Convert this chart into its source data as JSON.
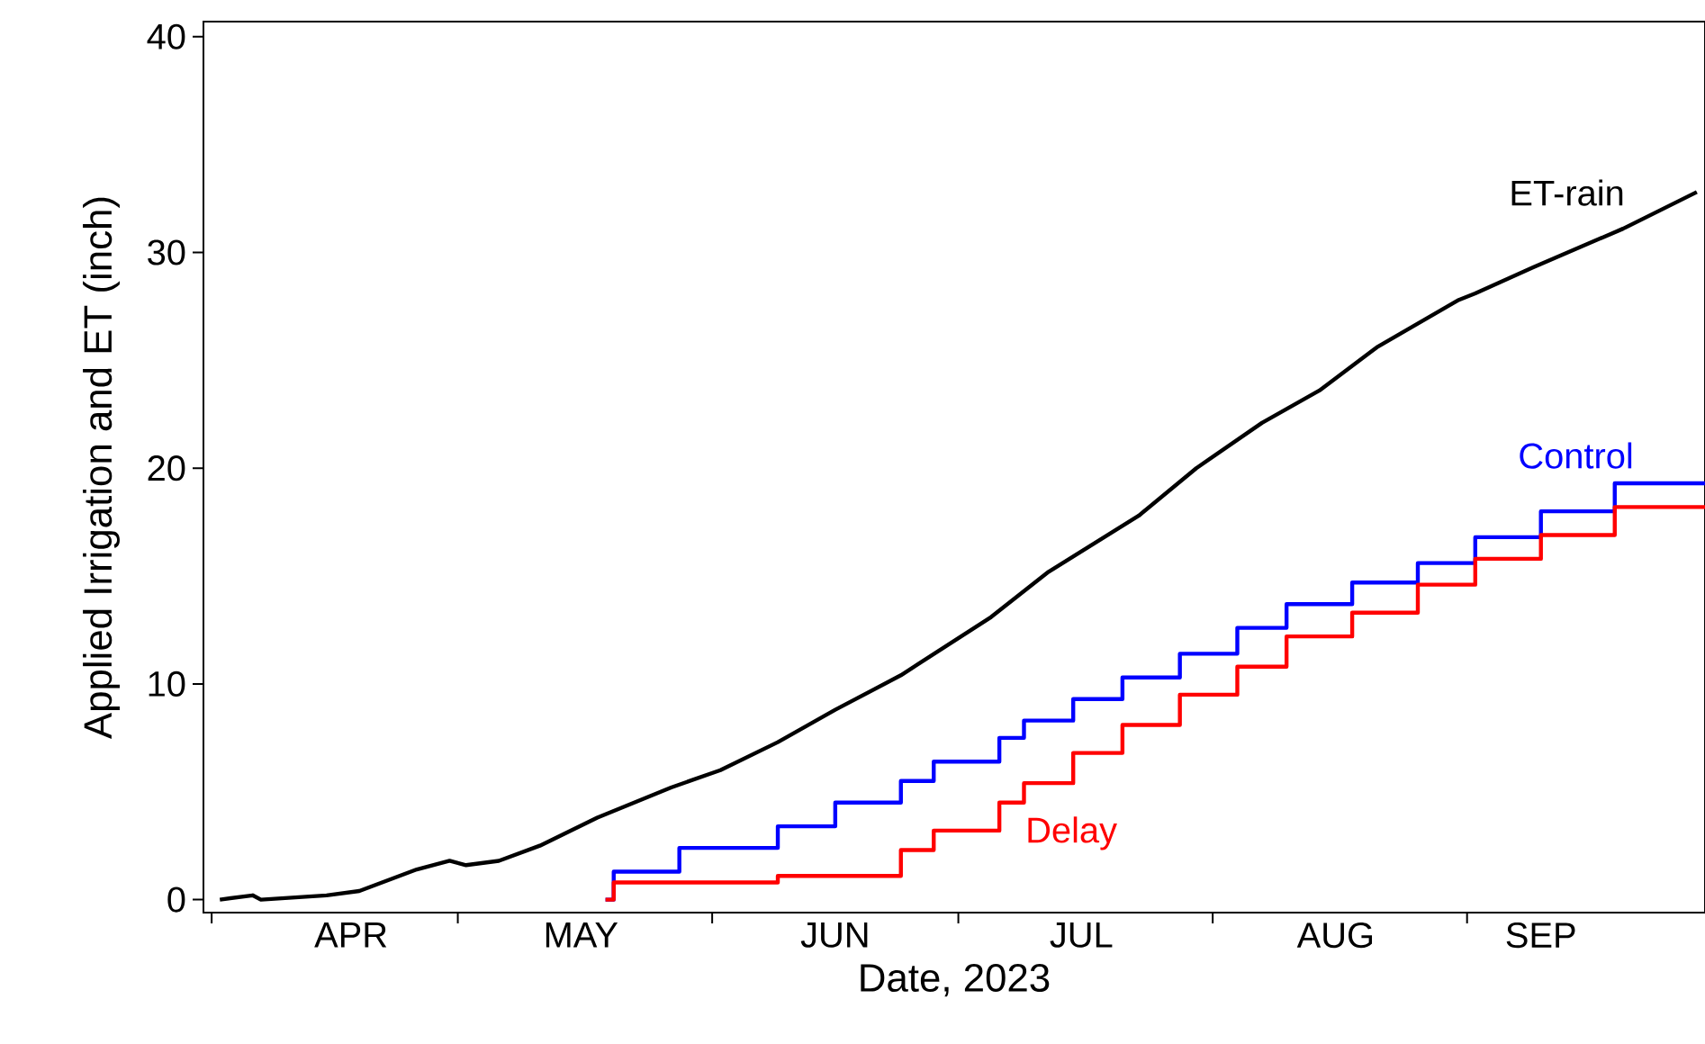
{
  "chart_data": {
    "type": "line",
    "xlabel": "Date, 2023",
    "ylabel": "Applied Irrigation and ET (inch)",
    "xlim": [
      "2023-03-31",
      "2023-09-30"
    ],
    "ylim": [
      -0.6,
      40.7
    ],
    "yticks": [
      0,
      10,
      20,
      30,
      40
    ],
    "xticks": [
      {
        "value": "2023-04-01",
        "label": null
      },
      {
        "value": "2023-05-01",
        "label": null
      },
      {
        "value": "2023-06-01",
        "label": null
      },
      {
        "value": "2023-07-01",
        "label": null
      },
      {
        "value": "2023-08-01",
        "label": null
      },
      {
        "value": "2023-09-01",
        "label": null
      },
      {
        "value": "2023-04-18",
        "label": "APR"
      },
      {
        "value": "2023-05-16",
        "label": "MAY"
      },
      {
        "value": "2023-06-16",
        "label": "JUN"
      },
      {
        "value": "2023-07-16",
        "label": "JUL"
      },
      {
        "value": "2023-08-16",
        "label": "AUG"
      },
      {
        "value": "2023-09-10",
        "label": "SEP"
      }
    ],
    "series": [
      {
        "name": "ET-rain",
        "color": "#000000",
        "type": "line",
        "x": [
          "2023-04-02",
          "2023-04-06",
          "2023-04-07",
          "2023-04-15",
          "2023-04-19",
          "2023-04-26",
          "2023-04-30",
          "2023-05-02",
          "2023-05-06",
          "2023-05-11",
          "2023-05-18",
          "2023-05-27",
          "2023-06-02",
          "2023-06-09",
          "2023-06-16",
          "2023-06-24",
          "2023-07-05",
          "2023-07-12",
          "2023-07-23",
          "2023-07-30",
          "2023-08-07",
          "2023-08-14",
          "2023-08-21",
          "2023-08-31",
          "2023-09-02",
          "2023-09-09",
          "2023-09-20",
          "2023-09-29"
        ],
        "values": [
          0,
          0.2,
          0,
          0.2,
          0.4,
          1.4,
          1.8,
          1.6,
          1.8,
          2.5,
          3.8,
          5.2,
          6.0,
          7.3,
          8.8,
          10.4,
          13.1,
          15.2,
          17.8,
          20,
          22.1,
          23.6,
          25.6,
          27.8,
          28.1,
          29.3,
          31.1,
          32.8
        ]
      },
      {
        "name": "Control",
        "color": "#0000ff",
        "type": "step",
        "x": [
          "2023-05-19",
          "2023-05-20",
          "2023-05-28",
          "2023-06-09",
          "2023-06-16",
          "2023-06-24",
          "2023-06-28",
          "2023-07-06",
          "2023-07-09",
          "2023-07-15",
          "2023-07-21",
          "2023-07-28",
          "2023-08-04",
          "2023-08-10",
          "2023-08-18",
          "2023-08-26",
          "2023-09-02",
          "2023-09-10",
          "2023-09-19",
          "2023-09-30"
        ],
        "values": [
          0,
          1.3,
          2.4,
          3.4,
          4.5,
          5.5,
          6.4,
          7.5,
          8.3,
          9.3,
          10.3,
          11.4,
          12.6,
          13.7,
          14.7,
          15.6,
          16.8,
          18,
          19.3,
          19.3
        ]
      },
      {
        "name": "Delay",
        "color": "#ff0000",
        "type": "step",
        "x": [
          "2023-05-19",
          "2023-05-20",
          "2023-06-09",
          "2023-06-24",
          "2023-06-28",
          "2023-07-06",
          "2023-07-09",
          "2023-07-15",
          "2023-07-21",
          "2023-07-28",
          "2023-08-04",
          "2023-08-10",
          "2023-08-18",
          "2023-08-26",
          "2023-09-02",
          "2023-09-10",
          "2023-09-19",
          "2023-09-30"
        ],
        "values": [
          0,
          0.8,
          1.1,
          2.3,
          3.2,
          4.5,
          5.4,
          6.8,
          8.1,
          9.5,
          10.8,
          12.2,
          13.3,
          14.6,
          15.8,
          16.9,
          18.2,
          18.2
        ]
      }
    ]
  }
}
